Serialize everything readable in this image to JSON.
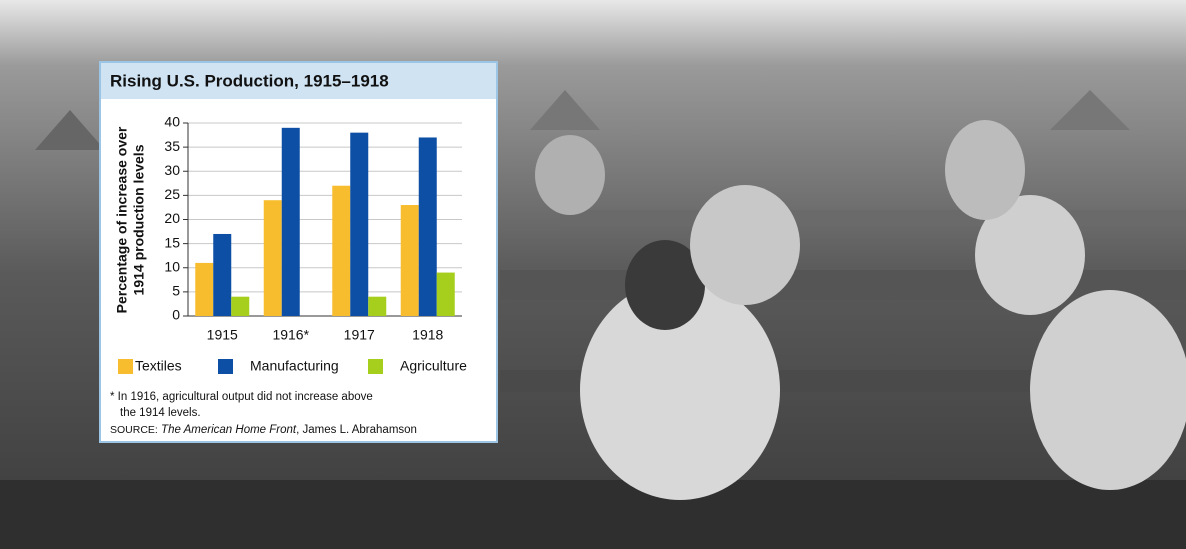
{
  "chart_data": {
    "type": "bar",
    "title": "Rising U.S. Production, 1915–1918",
    "y_label": [
      "Percentage of increase over",
      "1914 production levels"
    ],
    "categories": [
      "1915",
      "1916*",
      "1917",
      "1918"
    ],
    "series": [
      {
        "name": "Textiles",
        "color": "#f8bd2e",
        "values": [
          11,
          24,
          27,
          23
        ]
      },
      {
        "name": "Manufacturing",
        "color": "#0d4fa5",
        "values": [
          17,
          39,
          38,
          37
        ]
      },
      {
        "name": "Agriculture",
        "color": "#a6cf1d",
        "values": [
          4,
          0,
          4,
          9
        ]
      }
    ],
    "ylim": [
      0,
      40
    ],
    "yticks": [
      0,
      5,
      10,
      15,
      20,
      25,
      30,
      35,
      40
    ],
    "grid": true,
    "footnote": [
      "* In 1916, agricultural output did not increase above",
      "the 1914 levels."
    ],
    "source": {
      "label": "SOURCE:",
      "title": "The American Home Front",
      "rest": ", James L. Abrahamson"
    }
  }
}
